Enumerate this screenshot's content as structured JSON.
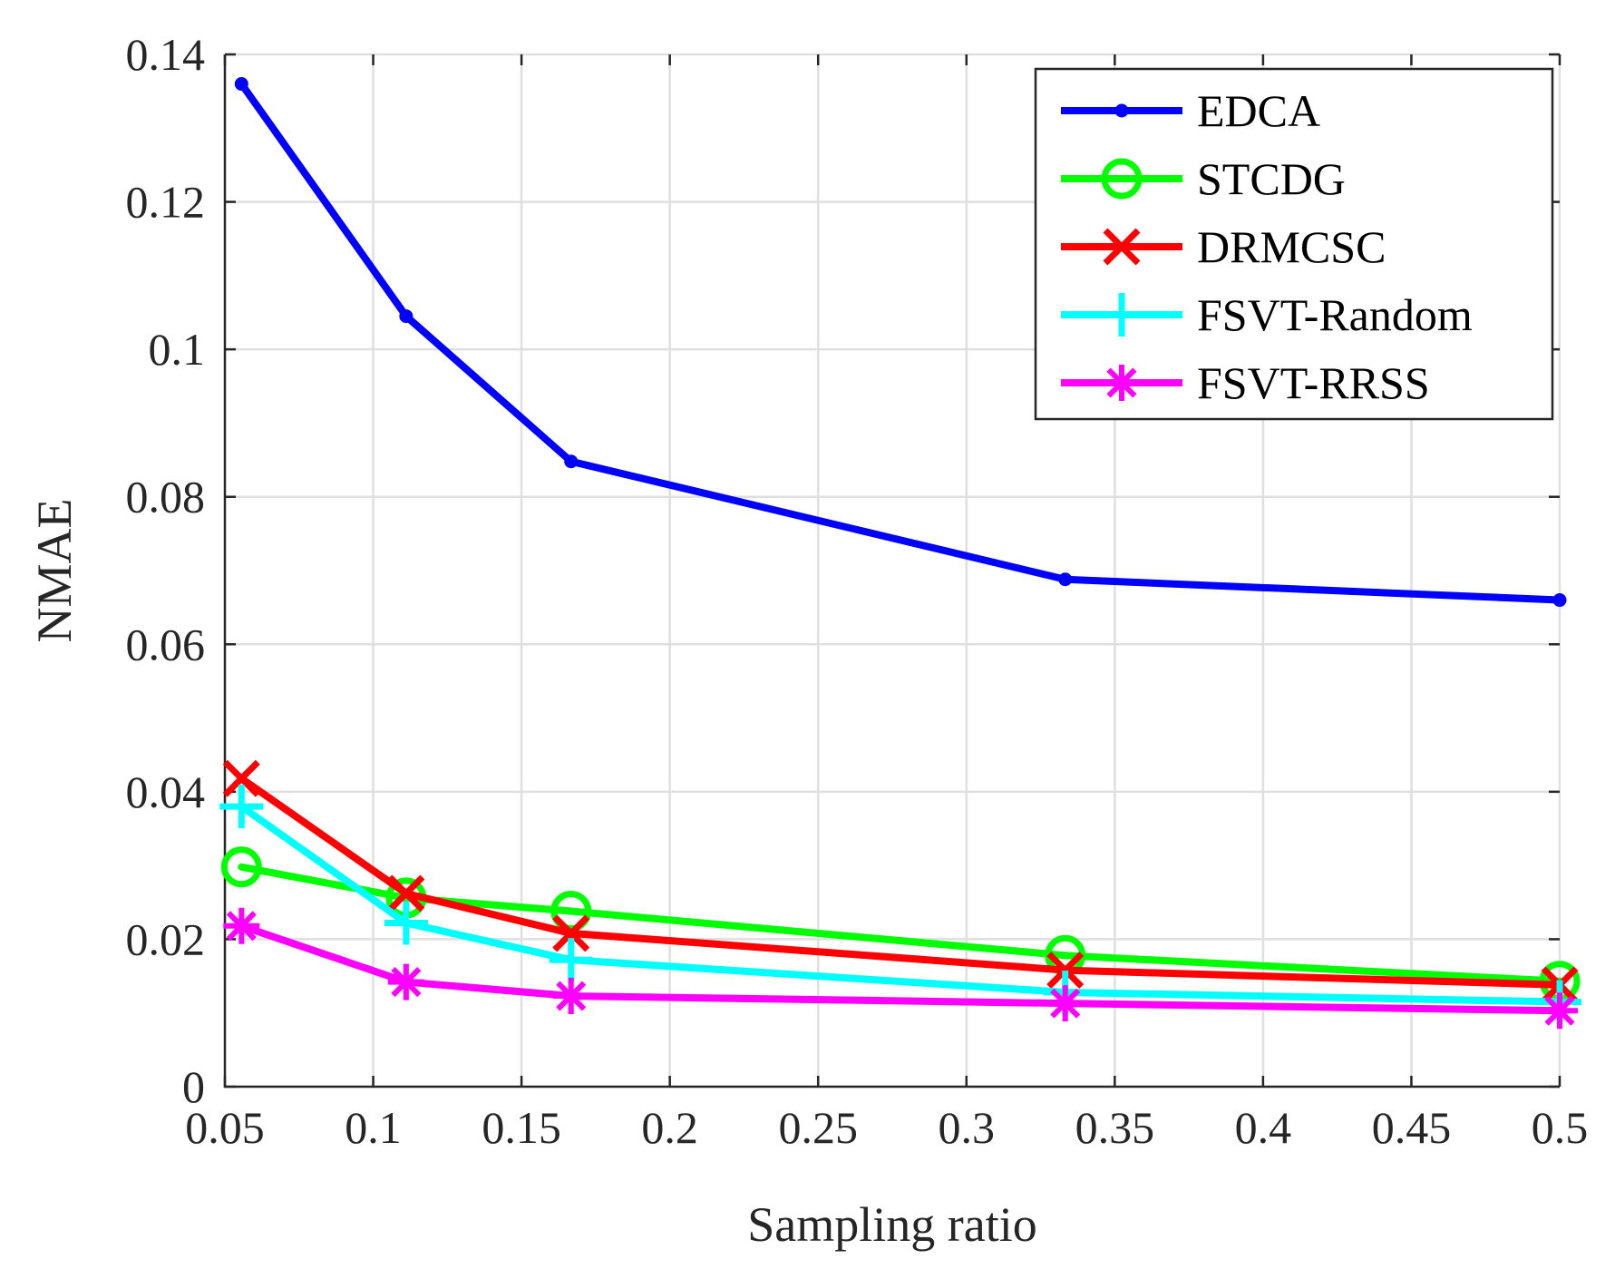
{
  "chart_data": {
    "type": "line",
    "title": "",
    "xlabel": "Sampling ratio",
    "ylabel": "NMAE",
    "xlim": [
      0.05,
      0.5
    ],
    "ylim": [
      0,
      0.14
    ],
    "xticks": [
      0.05,
      0.1,
      0.15,
      0.2,
      0.25,
      0.3,
      0.35,
      0.4,
      0.45,
      0.5
    ],
    "xtick_labels": [
      "0.05",
      "0.1",
      "0.15",
      "0.2",
      "0.25",
      "0.3",
      "0.35",
      "0.4",
      "0.45",
      "0.5"
    ],
    "yticks": [
      0,
      0.02,
      0.04,
      0.06,
      0.08,
      0.1,
      0.12,
      0.14
    ],
    "ytick_labels": [
      "0",
      "0.02",
      "0.04",
      "0.06",
      "0.08",
      "0.1",
      "0.12",
      "0.14"
    ],
    "grid": true,
    "legend_position": "top-right",
    "x": [
      0.0556,
      0.1111,
      0.1667,
      0.3333,
      0.5
    ],
    "series": [
      {
        "name": "EDCA",
        "color": "#0000ff",
        "marker": "dot",
        "values": [
          0.136,
          0.1045,
          0.0848,
          0.0688,
          0.066
        ]
      },
      {
        "name": "STCDG",
        "color": "#00ff00",
        "marker": "circle",
        "values": [
          0.0298,
          0.0256,
          0.0238,
          0.0178,
          0.0143
        ]
      },
      {
        "name": "DRMCSC",
        "color": "#ff0000",
        "marker": "x",
        "values": [
          0.0418,
          0.0262,
          0.0208,
          0.0158,
          0.0138
        ]
      },
      {
        "name": "FSVT-Random",
        "color": "#00ffff",
        "marker": "plus",
        "values": [
          0.038,
          0.0222,
          0.0172,
          0.0128,
          0.0115
        ]
      },
      {
        "name": "FSVT-RRSS",
        "color": "#ff00ff",
        "marker": "asterisk",
        "values": [
          0.0218,
          0.0142,
          0.0123,
          0.0113,
          0.0103
        ]
      }
    ]
  }
}
